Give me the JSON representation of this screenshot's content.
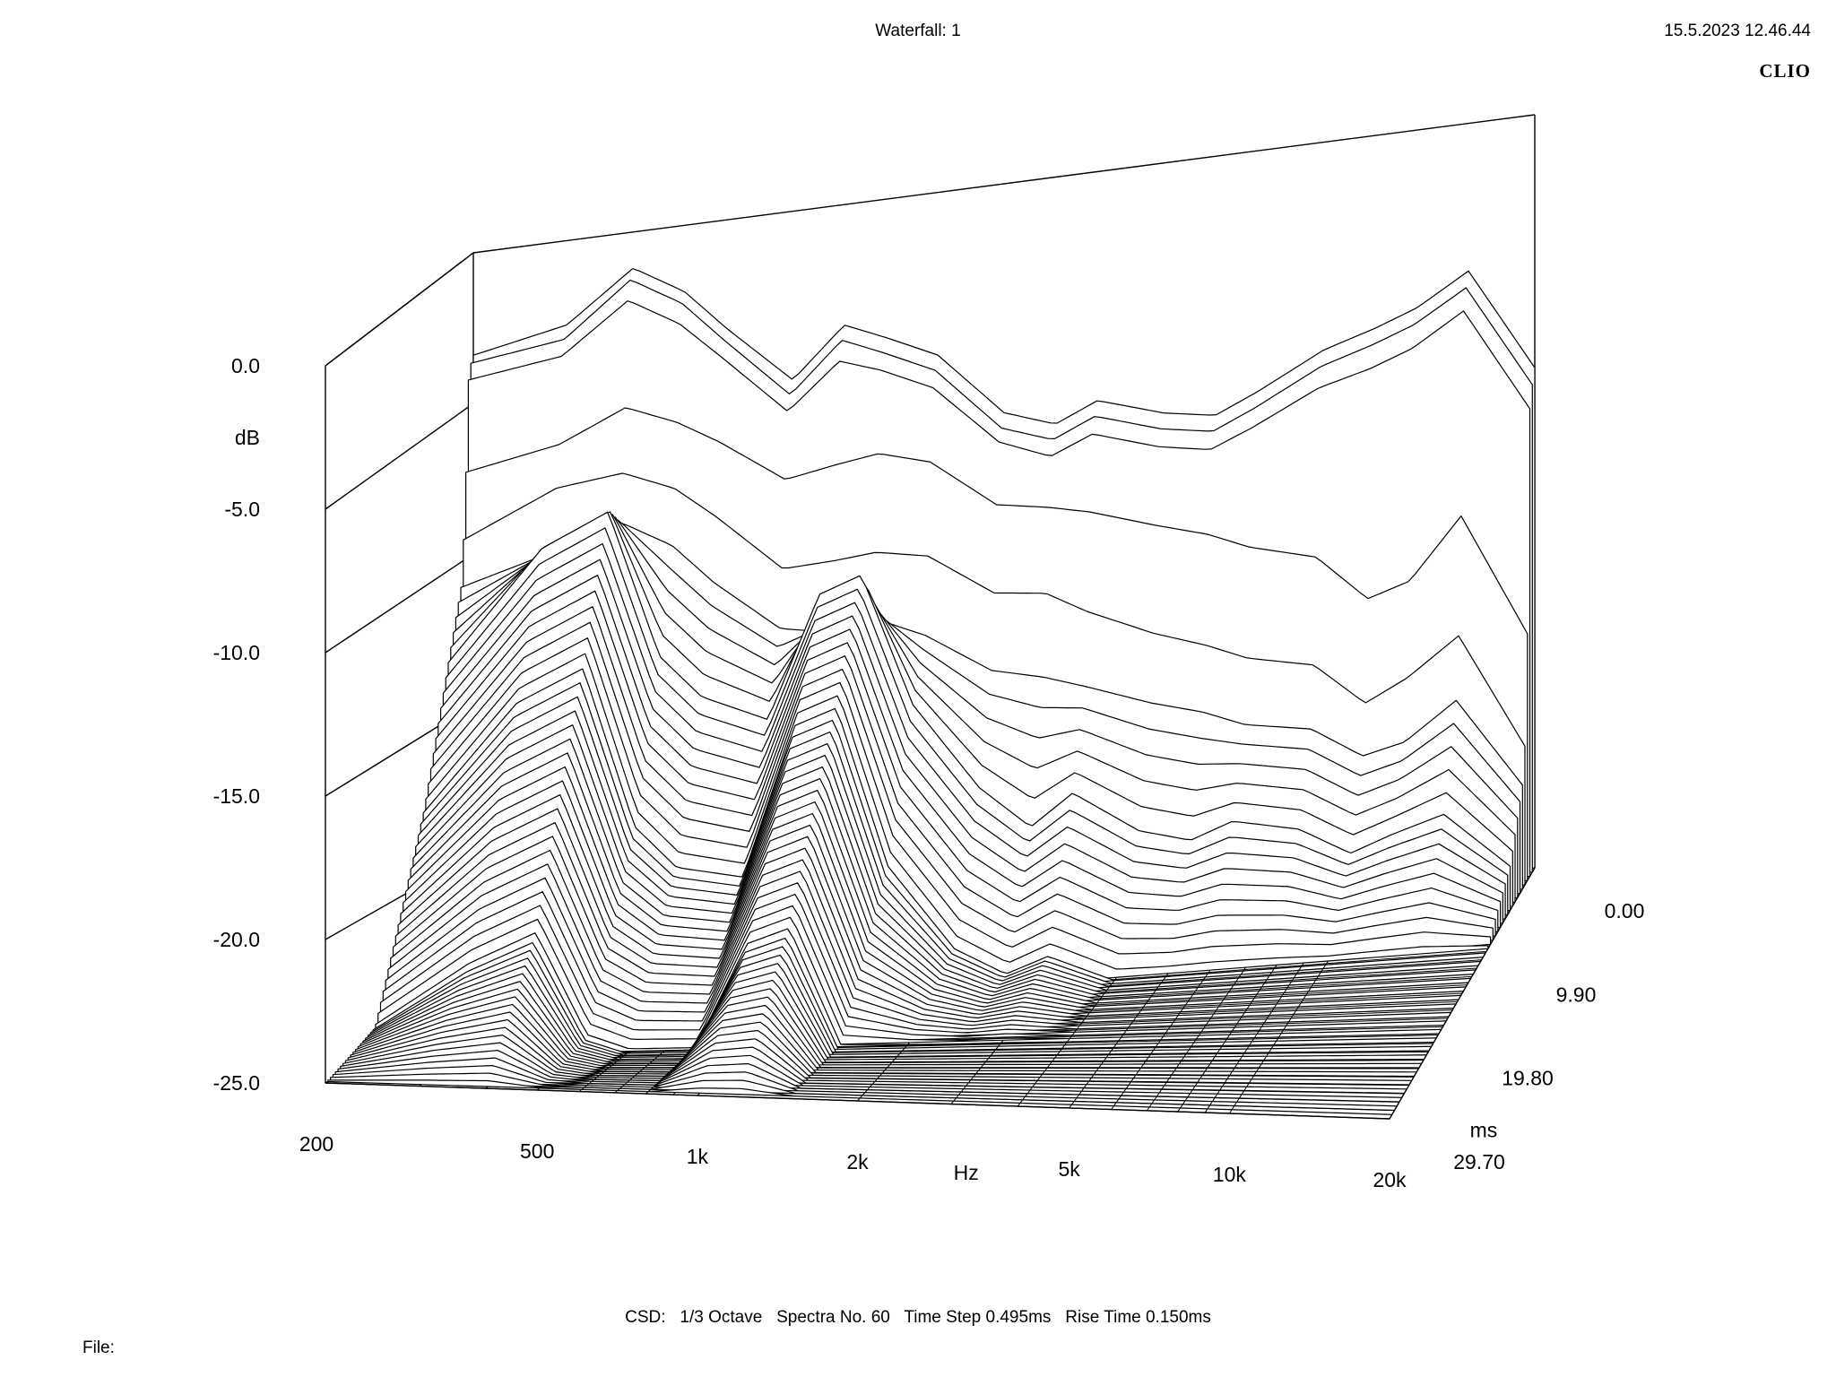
{
  "header": {
    "title": "Waterfall: 1",
    "timestamp": "15.5.2023 12.46.44",
    "brand": "CLIO"
  },
  "footer": {
    "csd_label": "CSD:",
    "octave": "1/3 Octave",
    "spectra": "Spectra No. 60",
    "time_step": "Time Step 0.495ms",
    "rise_time": "Rise Time 0.150ms",
    "file_label": "File:"
  },
  "chart_data": {
    "type": "waterfall",
    "title": "Waterfall: 1",
    "xlabel": "Hz",
    "ylabel": "dB",
    "zlabel": "ms",
    "x_ticks": [
      "200",
      "500",
      "1k",
      "2k",
      "5k",
      "10k",
      "20k"
    ],
    "y_ticks": [
      "0.0",
      "-5.0",
      "-10.0",
      "-15.0",
      "-20.0",
      "-25.0"
    ],
    "z_ticks": [
      "0.00",
      "9.90",
      "19.80",
      "29.70"
    ],
    "x_range_hz": [
      200,
      20000
    ],
    "x_scale": "log",
    "y_range_db": [
      -25,
      0
    ],
    "z_range_ms": [
      0,
      29.7
    ],
    "spectra_count": 60,
    "time_step_ms": 0.495,
    "rise_time_ms": 0.15,
    "smoothing": "1/3 Octave",
    "series": [
      {
        "time_ms": 0.0,
        "freq_hz": [
          200,
          300,
          400,
          500,
          600,
          800,
          1000,
          1200,
          1500,
          2000,
          2500,
          3000,
          4000,
          5000,
          6000,
          8000,
          10000,
          12000,
          15000,
          20000
        ],
        "db": [
          -3.4,
          -2.8,
          -1.2,
          -2.2,
          -3.6,
          -5.6,
          -4.0,
          -4.6,
          -5.4,
          -7.6,
          -8.2,
          -7.6,
          -8.3,
          -8.6,
          -8.0,
          -6.9,
          -6.4,
          -5.9,
          -4.9,
          -8.4
        ]
      },
      {
        "time_ms": 0.495,
        "freq_hz": [
          200,
          300,
          400,
          500,
          600,
          800,
          1000,
          1200,
          1500,
          2000,
          2500,
          3000,
          4000,
          5000,
          6000,
          8000,
          10000,
          12000,
          15000,
          20000
        ],
        "db": [
          -3.6,
          -3.2,
          -1.5,
          -2.5,
          -3.9,
          -6.0,
          -4.4,
          -5.0,
          -5.8,
          -8.0,
          -8.6,
          -8.0,
          -8.7,
          -9.0,
          -8.4,
          -7.3,
          -6.8,
          -6.3,
          -5.3,
          -8.8
        ]
      },
      {
        "time_ms": 0.99,
        "freq_hz": [
          200,
          300,
          400,
          500,
          600,
          800,
          1000,
          1200,
          1500,
          2000,
          2500,
          3000,
          4000,
          5000,
          6000,
          8000,
          10000,
          12000,
          15000,
          20000
        ],
        "db": [
          -4.0,
          -3.6,
          -2.0,
          -3.0,
          -4.3,
          -6.4,
          -4.9,
          -5.4,
          -6.2,
          -8.3,
          -9.0,
          -8.4,
          -9.1,
          -9.4,
          -8.8,
          -7.7,
          -7.2,
          -6.7,
          -5.7,
          -9.2
        ]
      },
      {
        "time_ms": 1.485,
        "freq_hz": [
          200,
          300,
          400,
          500,
          600,
          800,
          1000,
          1200,
          1500,
          2000,
          2500,
          3000,
          4000,
          5000,
          6000,
          8000,
          10000,
          12000,
          15000,
          20000
        ],
        "db": [
          -7.0,
          -6.5,
          -5.5,
          -6.2,
          -7.0,
          -8.5,
          -8.2,
          -8.0,
          -8.5,
          -10.2,
          -10.5,
          -10.8,
          -11.5,
          -12.0,
          -12.6,
          -13.2,
          -14.8,
          -14.4,
          -12.4,
          -16.6
        ]
      },
      {
        "time_ms": 1.98,
        "freq_hz": [
          200,
          300,
          400,
          500,
          600,
          800,
          1000,
          1200,
          1500,
          2000,
          2500,
          3000,
          4000,
          5000,
          6000,
          8000,
          10000,
          12000,
          15000,
          20000
        ],
        "db": [
          -9.2,
          -7.8,
          -7.6,
          -8.3,
          -9.4,
          -11.4,
          -11.3,
          -11.2,
          -11.5,
          -13.0,
          -13.2,
          -14.0,
          -15.0,
          -15.6,
          -16.2,
          -16.7,
          -18.2,
          -17.5,
          -16.3,
          -20.3
        ]
      },
      {
        "time_ms": 2.475,
        "freq_hz": [
          200,
          300,
          400,
          500,
          600,
          800,
          1000,
          1200,
          1500,
          2000,
          2500,
          3000,
          4000,
          5000,
          6000,
          8000,
          10000,
          12000,
          15000,
          20000
        ],
        "db": [
          -10.8,
          -10.0,
          -9.3,
          -10.2,
          -11.6,
          -13.4,
          -13.8,
          -13.5,
          -14.2,
          -15.6,
          -16.0,
          -16.5,
          -17.3,
          -17.8,
          -18.4,
          -18.8,
          -19.9,
          -19.6,
          -18.4,
          -21.5
        ]
      },
      {
        "time_ms": 4.95,
        "freq_hz": [
          200,
          300,
          400,
          500,
          600,
          800,
          1000,
          1200,
          1500,
          2000,
          2500,
          3000,
          4000,
          5000,
          6000,
          8000,
          10000,
          12000,
          15000,
          20000
        ],
        "db": [
          -13.0,
          -9.5,
          -8.5,
          -13.5,
          -15.0,
          -16.0,
          -12.0,
          -11.5,
          -16.0,
          -19.0,
          -20.5,
          -19.5,
          -21.0,
          -21.5,
          -21.0,
          -21.5,
          -22.5,
          -22.0,
          -21.5,
          -23.5
        ]
      },
      {
        "time_ms": 9.9,
        "freq_hz": [
          200,
          300,
          400,
          500,
          600,
          800,
          1000,
          1200,
          1500,
          2000,
          2500,
          3000,
          4000,
          5000,
          6000,
          8000,
          10000,
          12000,
          15000,
          20000
        ],
        "db": [
          -17.5,
          -14.0,
          -13.0,
          -18.5,
          -20.0,
          -20.5,
          -15.5,
          -15.0,
          -20.5,
          -23.5,
          -24.5,
          -24.0,
          -25.0,
          -25.0,
          -25.0,
          -25.0,
          -25.0,
          -25.0,
          -25.0,
          -25.0
        ]
      },
      {
        "time_ms": 19.8,
        "freq_hz": [
          200,
          300,
          400,
          500,
          600,
          800,
          1000,
          1200,
          1500,
          2000,
          2500,
          3000,
          4000,
          5000,
          6000,
          8000,
          10000,
          12000,
          15000,
          20000
        ],
        "db": [
          -24.0,
          -22.0,
          -21.0,
          -24.5,
          -25.0,
          -25.0,
          -21.5,
          -21.0,
          -25.0,
          -25.0,
          -25.0,
          -25.0,
          -25.0,
          -25.0,
          -25.0,
          -25.0,
          -25.0,
          -25.0,
          -25.0,
          -25.0
        ]
      },
      {
        "time_ms": 29.7,
        "freq_hz": [
          200,
          300,
          400,
          500,
          600,
          800,
          1000,
          1200,
          1500,
          2000,
          2500,
          3000,
          4000,
          5000,
          6000,
          8000,
          10000,
          12000,
          15000,
          20000
        ],
        "db": [
          -25.0,
          -25.0,
          -25.0,
          -25.0,
          -25.0,
          -25.0,
          -25.0,
          -25.0,
          -25.0,
          -25.0,
          -25.0,
          -25.0,
          -25.0,
          -25.0,
          -25.0,
          -25.0,
          -25.0,
          -25.0,
          -25.0,
          -25.0
        ]
      }
    ]
  }
}
